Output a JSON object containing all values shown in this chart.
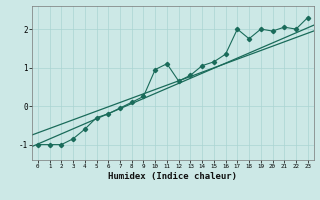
{
  "xlabel": "Humidex (Indice chaleur)",
  "x_values": [
    0,
    1,
    2,
    3,
    4,
    5,
    6,
    7,
    8,
    9,
    10,
    11,
    12,
    13,
    14,
    15,
    16,
    17,
    18,
    19,
    20,
    21,
    22,
    23
  ],
  "y_values": [
    -1.0,
    -1.0,
    -1.0,
    -0.85,
    -0.6,
    -0.3,
    -0.2,
    -0.05,
    0.1,
    0.25,
    0.95,
    1.1,
    0.65,
    0.8,
    1.05,
    1.15,
    1.35,
    2.0,
    1.75,
    2.0,
    1.95,
    2.05,
    2.0,
    2.3
  ],
  "color": "#1a6b5a",
  "bg_color": "#cce8e6",
  "grid_color": "#aad4d2",
  "ylim": [
    -1.4,
    2.6
  ],
  "xlim": [
    -0.5,
    23.5
  ],
  "trend_line1_y0": -1.05,
  "trend_line1_y1": 2.1,
  "trend_line2_y0": -0.75,
  "trend_line2_y1": 1.95
}
